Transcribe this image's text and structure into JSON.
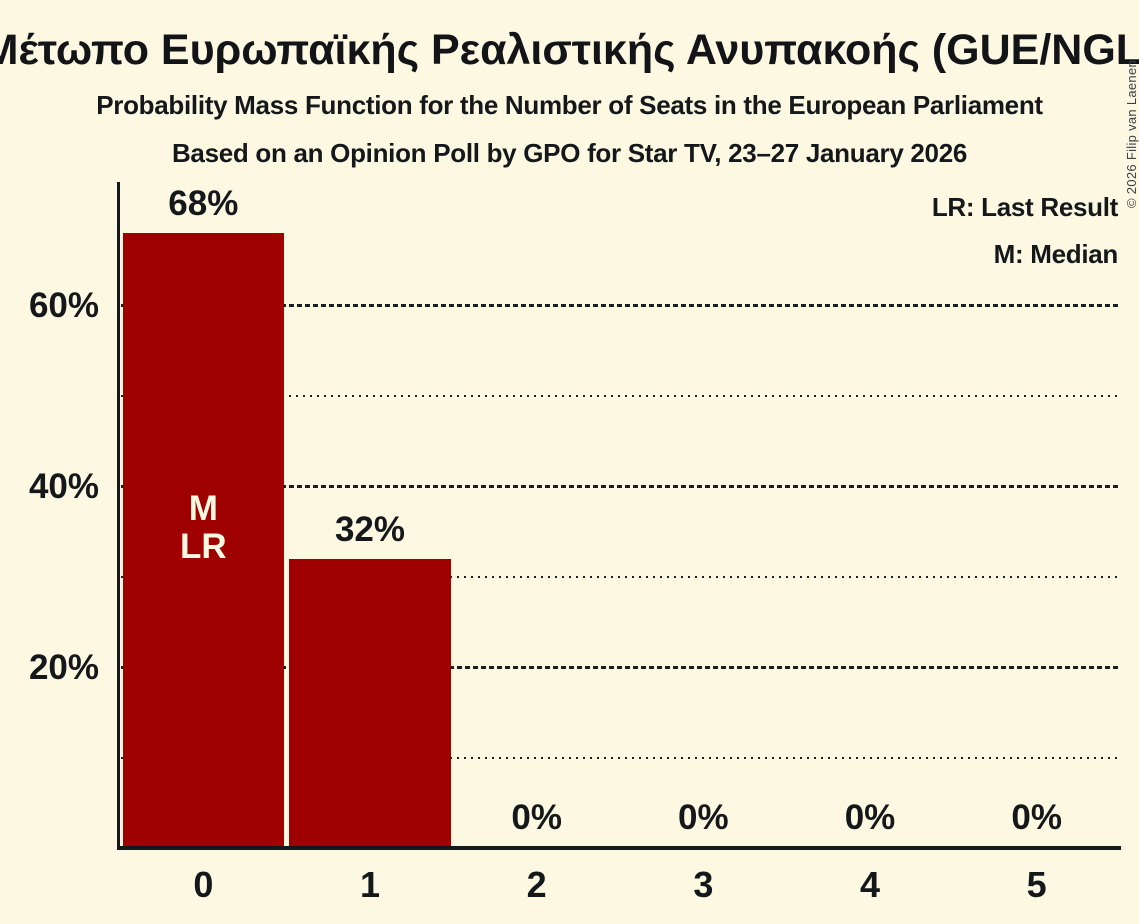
{
  "colors": {
    "background": "#FCF8E1",
    "bar": "#9F0101",
    "text": "#15181B",
    "grid": "#1B1E22",
    "bar_inner_label": "#FCF8E1",
    "copyright_text": "#3C4046"
  },
  "header": {
    "title": "Μέτωπο Ευρωπαϊκής Ρεαλιστικής Ανυπακοής (GUE/NGL)",
    "subtitle1": "Probability Mass Function for the Number of Seats in the European Parliament",
    "subtitle2": "Based on an Opinion Poll by GPO for Star TV, 23–27 January 2026"
  },
  "legend": {
    "lines": [
      "LR: Last Result",
      "M: Median"
    ]
  },
  "copyright": "© 2026 Filip van Laenen",
  "chart_data": {
    "type": "bar",
    "title": "Μέτωπο Ευρωπαϊκής Ρεαλιστικής Ανυπακοής (GUE/NGL)",
    "categories": [
      "0",
      "1",
      "2",
      "3",
      "4",
      "5"
    ],
    "values": [
      68,
      32,
      0,
      0,
      0,
      0
    ],
    "bar_labels": [
      "68%",
      "32%",
      "0%",
      "0%",
      "0%",
      "0%"
    ],
    "yticks": [
      {
        "value": 20,
        "label": "20%"
      },
      {
        "value": 40,
        "label": "40%"
      },
      {
        "value": 60,
        "label": "60%"
      }
    ],
    "major_gridlines": [
      20,
      40,
      60
    ],
    "minor_gridlines": [
      10,
      30,
      50
    ],
    "ylim": [
      0,
      73.6
    ],
    "grid": "on",
    "legend_position": "top-right",
    "legend": [
      "LR: Last Result",
      "M: Median"
    ],
    "annotations": [
      {
        "bar_index": 0,
        "lines": [
          "M",
          "LR"
        ]
      }
    ]
  }
}
